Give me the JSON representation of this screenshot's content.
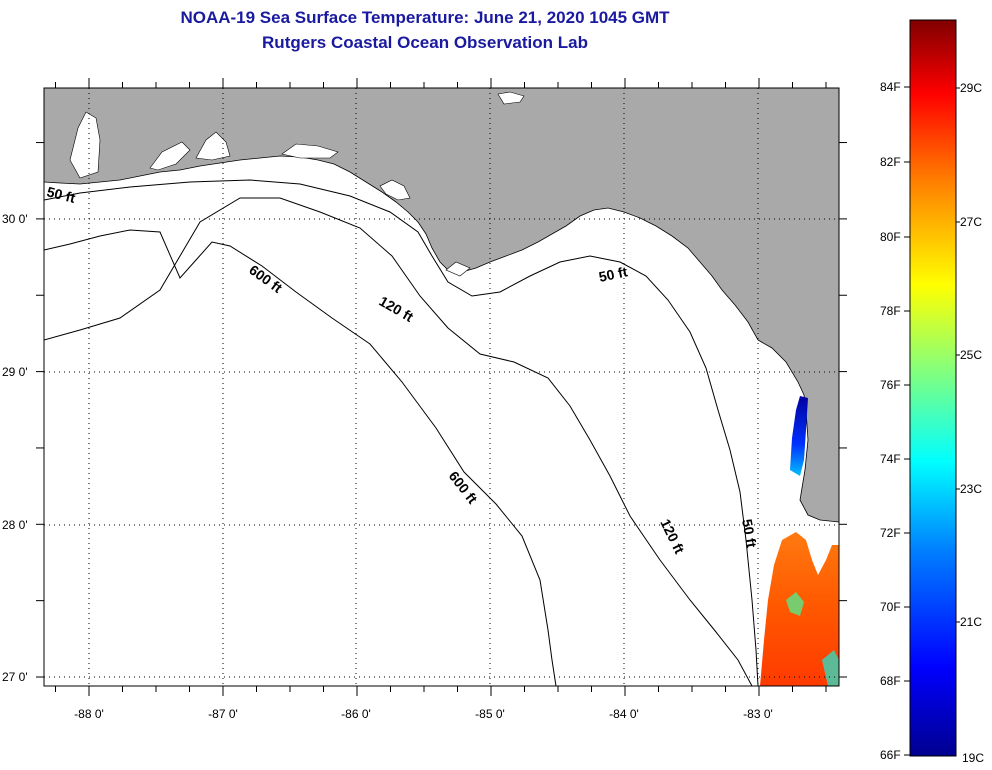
{
  "title": {
    "line1": "NOAA-19 Sea Surface Temperature:  June 21, 2020 1045 GMT",
    "line2": "Rutgers Coastal Ocean Observation Lab"
  },
  "map": {
    "lon_range": [
      -88.33,
      -82.48
    ],
    "lat_range": [
      26.92,
      30.85
    ],
    "x_tick_labels": [
      {
        "lon": -88,
        "label": "-88 0'"
      },
      {
        "lon": -87,
        "label": "-87 0'"
      },
      {
        "lon": -86,
        "label": "-86 0'"
      },
      {
        "lon": -85,
        "label": "-85 0'"
      },
      {
        "lon": -84,
        "label": "-84 0'"
      },
      {
        "lon": -83,
        "label": "-83 0'"
      }
    ],
    "y_tick_labels": [
      {
        "lat": 30,
        "label": "30 0'"
      },
      {
        "lat": 29,
        "label": "29 0'"
      },
      {
        "lat": 28,
        "label": "28 0'"
      },
      {
        "lat": 27,
        "label": "27 0'"
      }
    ],
    "contour_labels": [
      "50 ft",
      "600 ft",
      "120 ft",
      "50 ft",
      "600 ft",
      "120 ft",
      "50 ft"
    ],
    "land_color": "#a9a9a9",
    "ocean_color": "#ffffff",
    "grid": "dotted"
  },
  "colorbar": {
    "gradient": [
      "#00008f",
      "#0000ff",
      "#0080ff",
      "#00ffff",
      "#80ff80",
      "#ffff00",
      "#ff8000",
      "#ff0000",
      "#800000"
    ],
    "fahrenheit_labels": [
      "84F",
      "82F",
      "80F",
      "78F",
      "76F",
      "74F",
      "72F",
      "70F",
      "68F",
      "66F"
    ],
    "celsius_labels": [
      "29C",
      "27C",
      "25C",
      "23C",
      "21C",
      "19C"
    ]
  }
}
